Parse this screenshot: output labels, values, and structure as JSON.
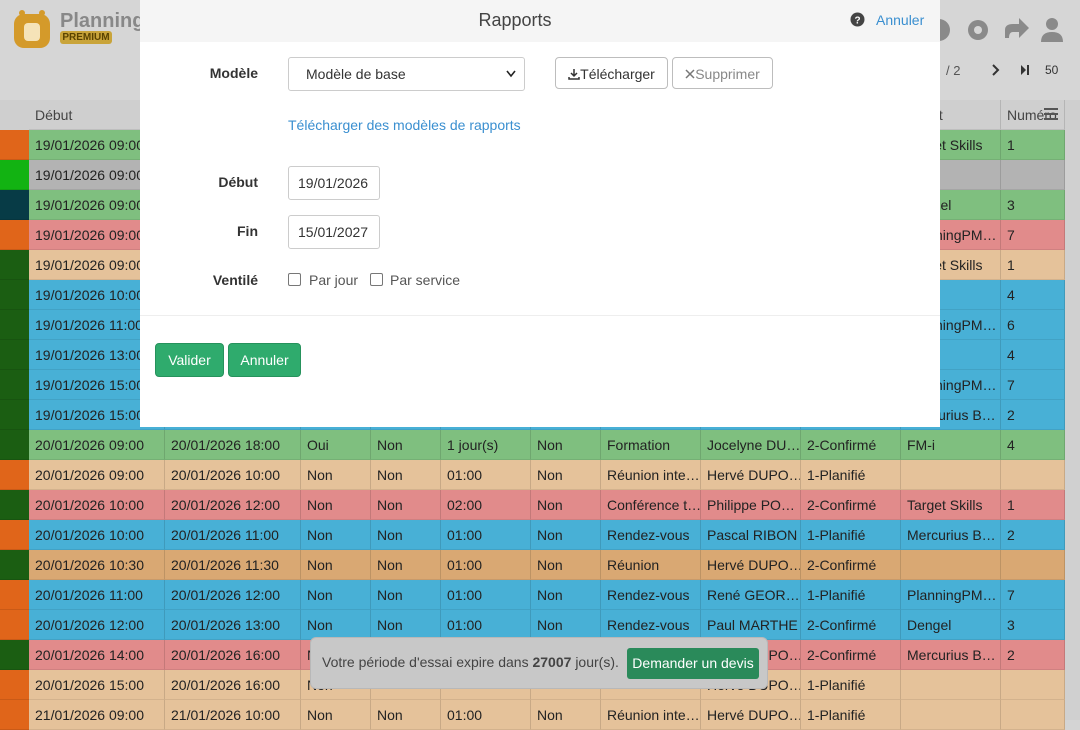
{
  "header": {
    "app_name": "Planning",
    "badge": "PREMIUM",
    "page_total": "/ 2",
    "page_size": "50"
  },
  "table": {
    "columns": [
      "Début",
      null,
      null,
      null,
      null,
      null,
      null,
      null,
      null,
      "Client",
      "Numéro"
    ],
    "rows": [
      {
        "strip": "#e0651a",
        "color": "#7fbf7f",
        "cells": [
          "19/01/2026 09:00",
          null,
          null,
          null,
          null,
          null,
          null,
          null,
          null,
          "Target Skills",
          "1"
        ]
      },
      {
        "strip": "#12b312",
        "color": "#b3b3b3",
        "cells": [
          "19/01/2026 09:00",
          null,
          null,
          null,
          null,
          null,
          null,
          null,
          null,
          null,
          null
        ]
      },
      {
        "strip": "#073b46",
        "color": "#7fbf7f",
        "cells": [
          "19/01/2026 09:00",
          null,
          null,
          null,
          null,
          null,
          null,
          null,
          null,
          "Dengel",
          "3"
        ]
      },
      {
        "strip": "#e0651a",
        "color": "#e18b8b",
        "cells": [
          "19/01/2026 09:00",
          null,
          null,
          null,
          null,
          null,
          null,
          null,
          null,
          "PlanningPM…",
          "7"
        ]
      },
      {
        "strip": "#1b5e12",
        "color": "#e5c29a",
        "cells": [
          "19/01/2026 09:00",
          null,
          null,
          null,
          null,
          null,
          null,
          null,
          null,
          "Target Skills",
          "1"
        ]
      },
      {
        "strip": "#1b5e12",
        "color": "#48b0d6",
        "cells": [
          "19/01/2026 10:00",
          null,
          null,
          null,
          null,
          null,
          null,
          null,
          null,
          null,
          "4"
        ]
      },
      {
        "strip": "#1b5e12",
        "color": "#48b0d6",
        "cells": [
          "19/01/2026 11:00",
          null,
          null,
          null,
          null,
          null,
          null,
          null,
          null,
          "PlanningPM…",
          "6"
        ]
      },
      {
        "strip": "#1b5e12",
        "color": "#48b0d6",
        "cells": [
          "19/01/2026 13:00",
          null,
          null,
          null,
          null,
          null,
          null,
          null,
          null,
          null,
          "4"
        ]
      },
      {
        "strip": "#1b5e12",
        "color": "#48b0d6",
        "cells": [
          "19/01/2026 15:00",
          null,
          null,
          null,
          null,
          null,
          null,
          null,
          null,
          "PlanningPM…",
          "7"
        ]
      },
      {
        "strip": "#1b5e12",
        "color": "#48b0d6",
        "cells": [
          "19/01/2026 15:00",
          null,
          null,
          null,
          null,
          null,
          null,
          null,
          null,
          "Mercurius B…",
          "2"
        ]
      },
      {
        "strip": "#1b5e12",
        "color": "#7fbf7f",
        "cells": [
          "20/01/2026 09:00",
          "20/01/2026 18:00",
          "Oui",
          "Non",
          "1 jour(s)",
          "Non",
          "Formation",
          "Jocelyne DU…",
          "2-Confirmé",
          "FM-i",
          "4"
        ]
      },
      {
        "strip": "#e0651a",
        "color": "#e5c29a",
        "cells": [
          "20/01/2026 09:00",
          "20/01/2026 10:00",
          "Non",
          "Non",
          "01:00",
          "Non",
          "Réunion inte…",
          "Hervé DUPO…",
          "1-Planifié",
          null,
          null
        ]
      },
      {
        "strip": "#1b5e12",
        "color": "#e18b8b",
        "cells": [
          "20/01/2026 10:00",
          "20/01/2026 12:00",
          "Non",
          "Non",
          "02:00",
          "Non",
          "Conférence t…",
          "Philippe PO…",
          "2-Confirmé",
          "Target Skills",
          "1"
        ]
      },
      {
        "strip": "#e0651a",
        "color": "#48b0d6",
        "cells": [
          "20/01/2026 10:00",
          "20/01/2026 11:00",
          "Non",
          "Non",
          "01:00",
          "Non",
          "Rendez-vous",
          "Pascal RIBON",
          "1-Planifié",
          "Mercurius B…",
          "2"
        ]
      },
      {
        "strip": "#1b5e12",
        "color": "#d9a873",
        "cells": [
          "20/01/2026 10:30",
          "20/01/2026 11:30",
          "Non",
          "Non",
          "01:00",
          "Non",
          "Réunion",
          "Hervé DUPO…",
          "2-Confirmé",
          null,
          null
        ]
      },
      {
        "strip": "#e0651a",
        "color": "#48b0d6",
        "cells": [
          "20/01/2026 11:00",
          "20/01/2026 12:00",
          "Non",
          "Non",
          "01:00",
          "Non",
          "Rendez-vous",
          "René GEOR…",
          "1-Planifié",
          "PlanningPM…",
          "7"
        ]
      },
      {
        "strip": "#e0651a",
        "color": "#48b0d6",
        "cells": [
          "20/01/2026 12:00",
          "20/01/2026 13:00",
          "Non",
          "Non",
          "01:00",
          "Non",
          "Rendez-vous",
          "Paul MARTHE",
          "2-Confirmé",
          "Dengel",
          "3"
        ]
      },
      {
        "strip": "#1b5e12",
        "color": "#e18b8b",
        "cells": [
          "20/01/2026 14:00",
          "20/01/2026 16:00",
          "Non",
          null,
          null,
          null,
          null,
          "Hervé DUPO…",
          "2-Confirmé",
          "Mercurius B…",
          "2"
        ]
      },
      {
        "strip": "#e0651a",
        "color": "#e5c29a",
        "cells": [
          "20/01/2026 15:00",
          "20/01/2026 16:00",
          "Non",
          null,
          null,
          null,
          null,
          "Hervé DUPO…",
          "1-Planifié",
          null,
          null
        ]
      },
      {
        "strip": "#e0651a",
        "color": "#e5c29a",
        "cells": [
          "21/01/2026 09:00",
          "21/01/2026 10:00",
          "Non",
          "Non",
          "01:00",
          "Non",
          "Réunion inte…",
          "Hervé DUPO…",
          "1-Planifié",
          null,
          null
        ]
      }
    ]
  },
  "dialog": {
    "title": "Rapports",
    "cancel_link": "Annuler",
    "model_label": "Modèle",
    "model_value": "Modèle de base",
    "download_button": "Télécharger",
    "delete_button": "Supprimer",
    "templates_link": "Télécharger des modèles de rapports",
    "start_label": "Début",
    "start_value": "19/01/2026",
    "end_label": "Fin",
    "end_value": "15/01/2027",
    "split_label": "Ventilé",
    "per_day": "Par jour",
    "per_service": "Par service",
    "submit": "Valider",
    "cancel": "Annuler"
  },
  "trial_notice": {
    "before": "Votre période d'essai expire dans",
    "days": 27007,
    "after": "jour(s).",
    "button": "Demander un devis"
  }
}
